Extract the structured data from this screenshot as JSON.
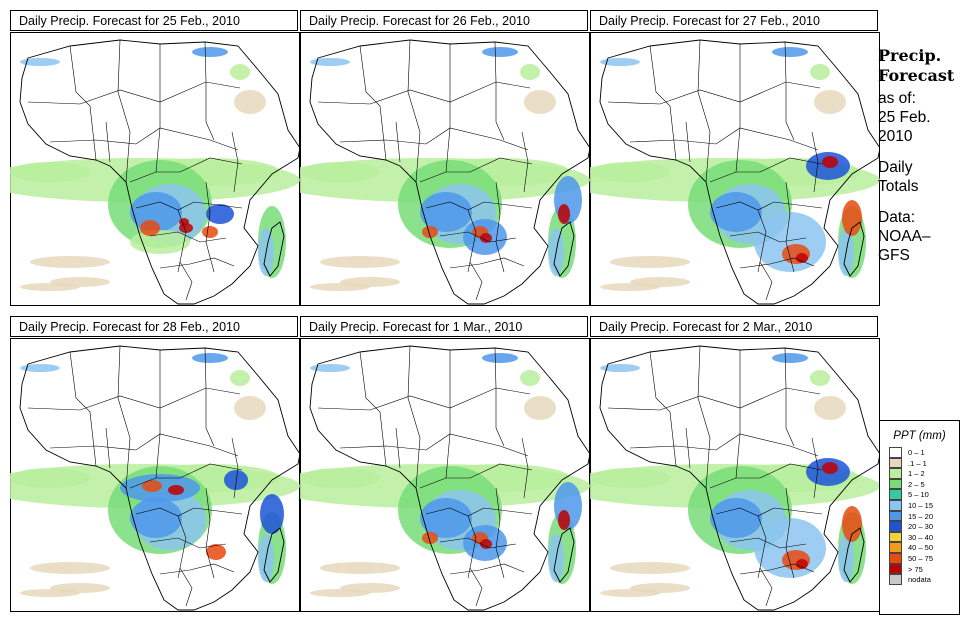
{
  "panels": [
    {
      "title": "Daily Precip. Forecast for  25 Feb., 2010",
      "pattern": "central-heavy"
    },
    {
      "title": "Daily Precip. Forecast for  26 Feb., 2010",
      "pattern": "central-lake"
    },
    {
      "title": "Daily Precip. Forecast for  27 Feb., 2010",
      "pattern": "southeast"
    },
    {
      "title": "Daily Precip. Forecast for  28 Feb., 2010",
      "pattern": "north-central"
    },
    {
      "title": "Daily Precip. Forecast for  1 Mar., 2010",
      "pattern": "central-lake"
    },
    {
      "title": "Daily Precip. Forecast for  2 Mar., 2010",
      "pattern": "southeast"
    }
  ],
  "side": {
    "heading1": "Precip.",
    "heading2": "Forecast",
    "asof1": "as of:",
    "asof2": "25 Feb.",
    "asof3": "2010",
    "totals1": "Daily",
    "totals2": "Totals",
    "data1": "Data:",
    "data2": "NOAA–",
    "data3": "GFS"
  },
  "legend": {
    "title": "PPT (mm)",
    "items": [
      {
        "label": "0 – 1",
        "color": "#ffffff"
      },
      {
        "label": ".1 – 1",
        "color": "#e8d8bc"
      },
      {
        "label": "1 – 2",
        "color": "#b9ee9c"
      },
      {
        "label": "2 – 5",
        "color": "#78dd78"
      },
      {
        "label": "5 – 10",
        "color": "#38c8a0"
      },
      {
        "label": "10 – 15",
        "color": "#8cc4f0"
      },
      {
        "label": "15 – 20",
        "color": "#4e98ea"
      },
      {
        "label": "20 – 30",
        "color": "#1c54d8"
      },
      {
        "label": "30 – 40",
        "color": "#f2d23a"
      },
      {
        "label": "40 – 50",
        "color": "#f59a1a"
      },
      {
        "label": "50 – 75",
        "color": "#e84a10"
      },
      {
        "label": "> 75",
        "color": "#c00000"
      },
      {
        "label": "nodata",
        "color": "#c8c8c8"
      }
    ]
  }
}
